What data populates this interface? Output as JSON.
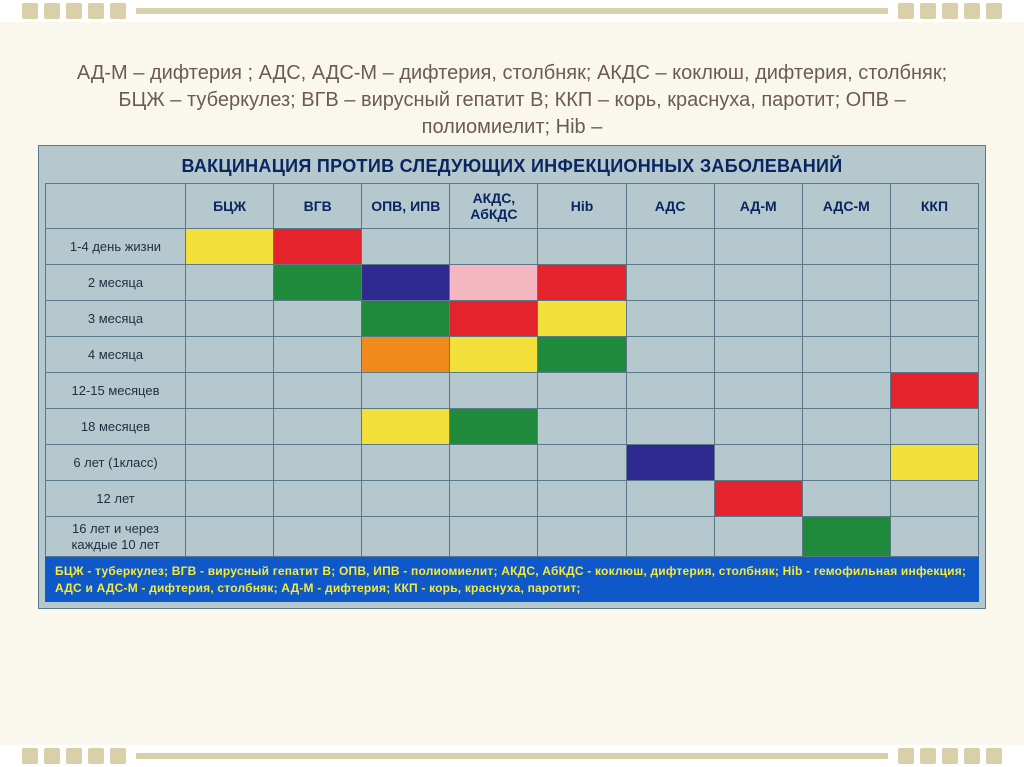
{
  "description": "АД-М – дифтерия ; АДС, АДС-М – дифтерия, столбняк; АКДС – коклюш, дифтерия, столбняк; БЦЖ – туберкулез; ВГВ – вирусный гепатит В; ККП – корь, краснуха, паротит; ОПВ – полиомиелит; Hib –",
  "chart": {
    "title": "ВАКЦИНАЦИЯ ПРОТИВ СЛЕДУЮЩИХ ИНФЕКЦИОННЫХ ЗАБОЛЕВАНИЙ",
    "columns": [
      "БЦЖ",
      "ВГВ",
      "ОПВ, ИПВ",
      "АКДС, АбКДС",
      "Hib",
      "АДС",
      "АД-М",
      "АДС-М",
      "ККП"
    ],
    "rows": [
      {
        "label": "1-4 день жизни",
        "cells": [
          "#f3e03a",
          "#e4232d",
          "",
          "",
          "",
          "",
          "",
          "",
          ""
        ]
      },
      {
        "label": "2 месяца",
        "cells": [
          "",
          "#1f8a3b",
          "#2e2a90",
          "#f4b6c0",
          "#e4232d",
          "",
          "",
          "",
          ""
        ]
      },
      {
        "label": "3 месяца",
        "cells": [
          "",
          "",
          "#1f8a3b",
          "#e4232d",
          "#f3e03a",
          "",
          "",
          "",
          ""
        ]
      },
      {
        "label": "4 месяца",
        "cells": [
          "",
          "",
          "#f08a1a",
          "#f3e03a",
          "#1f8a3b",
          "",
          "",
          "",
          ""
        ]
      },
      {
        "label": "12-15 месяцев",
        "cells": [
          "",
          "",
          "",
          "",
          "",
          "",
          "",
          "",
          "#e4232d"
        ]
      },
      {
        "label": "18 месяцев",
        "cells": [
          "",
          "",
          "#f3e03a",
          "#1f8a3b",
          "",
          "",
          "",
          "",
          ""
        ]
      },
      {
        "label": "6 лет (1класс)",
        "cells": [
          "",
          "",
          "",
          "",
          "",
          "#2e2a90",
          "",
          "",
          "#f3e03a"
        ]
      },
      {
        "label": "12 лет",
        "cells": [
          "",
          "",
          "",
          "",
          "",
          "",
          "#e4232d",
          "",
          ""
        ]
      },
      {
        "label": "16 лет и через каждые 10 лет",
        "cells": [
          "",
          "",
          "",
          "",
          "",
          "",
          "",
          "#1f8a3b",
          ""
        ]
      }
    ],
    "legend_text": "БЦЖ - туберкулез; ВГВ - вирусный гепатит В; ОПВ, ИПВ - полиомиелит; АКДС, АбКДС - коклюш, дифтерия, столбняк; Hib - гемофильная инфекция; АДС и АДС-М - дифтерия, столбняк; АД-М - дифтерия; ККП - корь, краснуха, паротит;",
    "deco_color": "#d9cfa8",
    "background": "#faf8ed"
  }
}
